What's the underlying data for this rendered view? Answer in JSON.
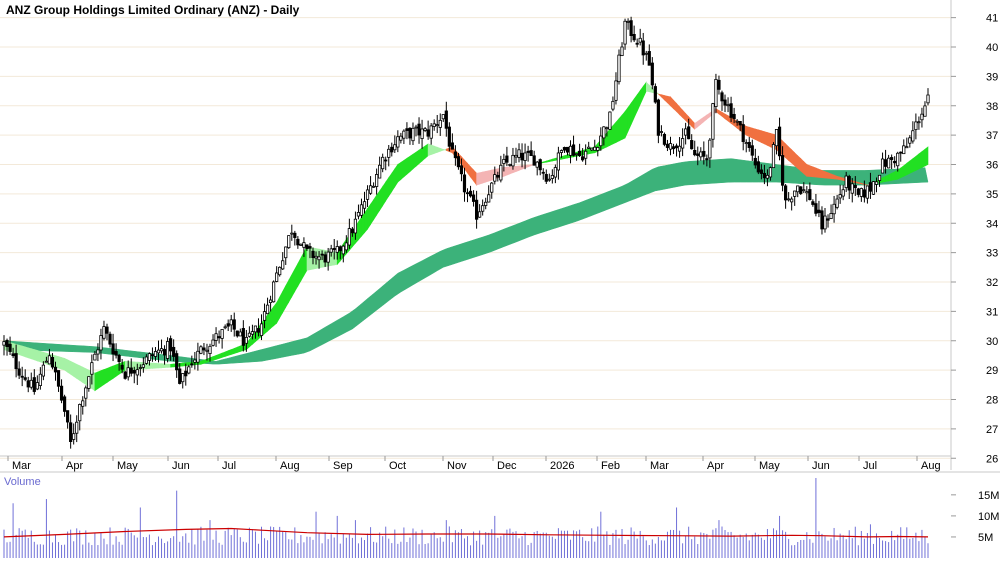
{
  "chart_data": {
    "type": "candlestick",
    "title": "ANZ Group Holdings Limited Ordinary (ANZ) - Daily",
    "price_axis": {
      "ylim": [
        25.6,
        41.6
      ],
      "ticks": [
        26,
        27,
        28,
        29,
        30,
        31,
        32,
        33,
        34,
        35,
        36,
        37,
        38,
        39,
        40,
        41
      ]
    },
    "x_labels": [
      "Mar",
      "Apr",
      "May",
      "Jun",
      "Jul",
      "Aug",
      "Sep",
      "Oct",
      "Nov",
      "Dec",
      "2026",
      "Feb",
      "Mar",
      "Apr",
      "May",
      "Jun",
      "Jul",
      "Aug"
    ],
    "close_path": [
      [
        0,
        29.9
      ],
      [
        5,
        29.0
      ],
      [
        10,
        28.3
      ],
      [
        15,
        29.6
      ],
      [
        20,
        27.6
      ],
      [
        22,
        26.5
      ],
      [
        25,
        27.8
      ],
      [
        30,
        29.5
      ],
      [
        33,
        30.4
      ],
      [
        37,
        29.5
      ],
      [
        40,
        28.9
      ],
      [
        45,
        29.2
      ],
      [
        50,
        29.6
      ],
      [
        55,
        29.8
      ],
      [
        58,
        28.5
      ],
      [
        62,
        29.3
      ],
      [
        66,
        29.8
      ],
      [
        70,
        30.1
      ],
      [
        75,
        30.5
      ],
      [
        80,
        29.9
      ],
      [
        85,
        30.6
      ],
      [
        88,
        31.6
      ],
      [
        91,
        32.6
      ],
      [
        95,
        33.8
      ],
      [
        100,
        33.0
      ],
      [
        105,
        32.8
      ],
      [
        110,
        33.0
      ],
      [
        115,
        33.8
      ],
      [
        120,
        35.0
      ],
      [
        125,
        36.2
      ],
      [
        130,
        36.9
      ],
      [
        135,
        37.1
      ],
      [
        140,
        37.1
      ],
      [
        145,
        37.7
      ],
      [
        148,
        36.3
      ],
      [
        152,
        35.2
      ],
      [
        156,
        34.3
      ],
      [
        160,
        35.1
      ],
      [
        165,
        36.0
      ],
      [
        170,
        36.3
      ],
      [
        175,
        36.2
      ],
      [
        180,
        35.5
      ],
      [
        185,
        36.7
      ],
      [
        190,
        36.3
      ],
      [
        195,
        36.6
      ],
      [
        200,
        37.6
      ],
      [
        205,
        40.8
      ],
      [
        210,
        40.1
      ],
      [
        213,
        39.4
      ],
      [
        216,
        37.2
      ],
      [
        220,
        36.6
      ],
      [
        225,
        37.0
      ],
      [
        228,
        36.3
      ],
      [
        232,
        36.2
      ],
      [
        235,
        38.7
      ],
      [
        240,
        37.8
      ],
      [
        244,
        37.0
      ],
      [
        248,
        36.0
      ],
      [
        252,
        35.5
      ],
      [
        255,
        37.0
      ],
      [
        258,
        34.7
      ],
      [
        262,
        35.3
      ],
      [
        266,
        34.9
      ],
      [
        270,
        33.9
      ],
      [
        274,
        34.6
      ],
      [
        278,
        35.4
      ],
      [
        282,
        34.9
      ],
      [
        286,
        35.2
      ],
      [
        290,
        36.0
      ],
      [
        294,
        36.2
      ],
      [
        298,
        36.6
      ],
      [
        302,
        37.6
      ],
      [
        305,
        38.2
      ]
    ],
    "moving_averages": {
      "short_upper": [
        [
          0,
          30.0
        ],
        [
          20,
          29.4
        ],
        [
          30,
          28.9
        ],
        [
          40,
          29.3
        ],
        [
          55,
          29.2
        ],
        [
          65,
          29.3
        ],
        [
          80,
          29.9
        ],
        [
          90,
          31.3
        ],
        [
          100,
          33.2
        ],
        [
          110,
          33.0
        ],
        [
          120,
          34.5
        ],
        [
          130,
          36.0
        ],
        [
          140,
          36.7
        ],
        [
          148,
          36.4
        ],
        [
          156,
          35.3
        ],
        [
          165,
          35.6
        ],
        [
          175,
          36.0
        ],
        [
          185,
          36.3
        ],
        [
          195,
          36.6
        ],
        [
          205,
          37.8
        ],
        [
          212,
          38.8
        ],
        [
          220,
          38.0
        ],
        [
          228,
          37.2
        ],
        [
          235,
          37.8
        ],
        [
          245,
          37.0
        ],
        [
          255,
          36.5
        ],
        [
          265,
          35.6
        ],
        [
          275,
          35.5
        ],
        [
          285,
          35.3
        ],
        [
          295,
          35.8
        ],
        [
          305,
          36.6
        ]
      ],
      "short_lower": [
        [
          0,
          29.7
        ],
        [
          20,
          29.0
        ],
        [
          30,
          28.3
        ],
        [
          40,
          29.0
        ],
        [
          55,
          29.1
        ],
        [
          65,
          29.2
        ],
        [
          80,
          29.7
        ],
        [
          90,
          30.6
        ],
        [
          100,
          32.4
        ],
        [
          110,
          32.6
        ],
        [
          120,
          33.8
        ],
        [
          130,
          35.4
        ],
        [
          140,
          36.3
        ],
        [
          148,
          36.6
        ],
        [
          156,
          35.7
        ],
        [
          165,
          35.9
        ],
        [
          175,
          36.0
        ],
        [
          185,
          36.2
        ],
        [
          195,
          36.4
        ],
        [
          205,
          36.9
        ],
        [
          212,
          38.5
        ],
        [
          220,
          38.3
        ],
        [
          228,
          37.4
        ],
        [
          235,
          37.9
        ],
        [
          245,
          37.3
        ],
        [
          255,
          37.0
        ],
        [
          265,
          36.0
        ],
        [
          275,
          35.6
        ],
        [
          285,
          35.3
        ],
        [
          295,
          35.5
        ],
        [
          305,
          36.0
        ]
      ],
      "long_upper": [
        [
          0,
          30.0
        ],
        [
          30,
          29.8
        ],
        [
          55,
          29.5
        ],
        [
          70,
          29.3
        ],
        [
          85,
          29.7
        ],
        [
          100,
          30.1
        ],
        [
          115,
          31.0
        ],
        [
          130,
          32.3
        ],
        [
          145,
          33.1
        ],
        [
          160,
          33.6
        ],
        [
          175,
          34.2
        ],
        [
          190,
          34.7
        ],
        [
          205,
          35.3
        ],
        [
          215,
          35.9
        ],
        [
          225,
          36.1
        ],
        [
          240,
          36.2
        ],
        [
          255,
          36.0
        ],
        [
          270,
          35.8
        ],
        [
          285,
          35.8
        ],
        [
          305,
          35.9
        ]
      ],
      "long_lower": [
        [
          0,
          29.7
        ],
        [
          30,
          29.6
        ],
        [
          55,
          29.3
        ],
        [
          70,
          29.2
        ],
        [
          85,
          29.3
        ],
        [
          100,
          29.6
        ],
        [
          115,
          30.4
        ],
        [
          130,
          31.6
        ],
        [
          145,
          32.5
        ],
        [
          160,
          33.0
        ],
        [
          175,
          33.6
        ],
        [
          190,
          34.1
        ],
        [
          205,
          34.7
        ],
        [
          215,
          35.1
        ],
        [
          225,
          35.3
        ],
        [
          240,
          35.4
        ],
        [
          255,
          35.4
        ],
        [
          270,
          35.3
        ],
        [
          285,
          35.3
        ],
        [
          305,
          35.4
        ]
      ]
    },
    "volume_axis": {
      "ylim": [
        0,
        19
      ],
      "ticks": [
        5,
        10,
        15
      ],
      "tick_labels": [
        "5M",
        "10M",
        "15M"
      ],
      "label": "Volume"
    },
    "volume_spikes": [
      [
        3,
        13
      ],
      [
        14,
        14
      ],
      [
        45,
        12
      ],
      [
        57,
        16
      ],
      [
        68,
        9
      ],
      [
        103,
        11
      ],
      [
        110,
        10
      ],
      [
        116,
        9
      ],
      [
        146,
        9
      ],
      [
        162,
        10
      ],
      [
        197,
        11
      ],
      [
        222,
        12
      ],
      [
        236,
        9
      ],
      [
        256,
        10
      ],
      [
        268,
        19
      ],
      [
        286,
        8
      ]
    ],
    "volume_average": [
      [
        0,
        5.0
      ],
      [
        20,
        5.6
      ],
      [
        40,
        6.3
      ],
      [
        60,
        6.8
      ],
      [
        75,
        7.0
      ],
      [
        85,
        6.6
      ],
      [
        100,
        6.0
      ],
      [
        120,
        5.6
      ],
      [
        140,
        5.7
      ],
      [
        160,
        5.7
      ],
      [
        180,
        5.5
      ],
      [
        200,
        5.4
      ],
      [
        220,
        5.3
      ],
      [
        240,
        5.2
      ],
      [
        260,
        5.4
      ],
      [
        270,
        5.3
      ],
      [
        285,
        5.0
      ],
      [
        295,
        5.1
      ],
      [
        305,
        5.0
      ]
    ],
    "colors": {
      "up_ribbon": "#22e022",
      "down_ribbon": "#f07040",
      "fade_up_ribbon": "#a6f2a6",
      "fade_down_ribbon": "#f4b4b4",
      "long_ribbon": "#3cb27a",
      "volume_bar": "#7070d8",
      "volume_avg": "#cc0000",
      "grid": "#f3e9d9",
      "candle": "#000000"
    }
  }
}
